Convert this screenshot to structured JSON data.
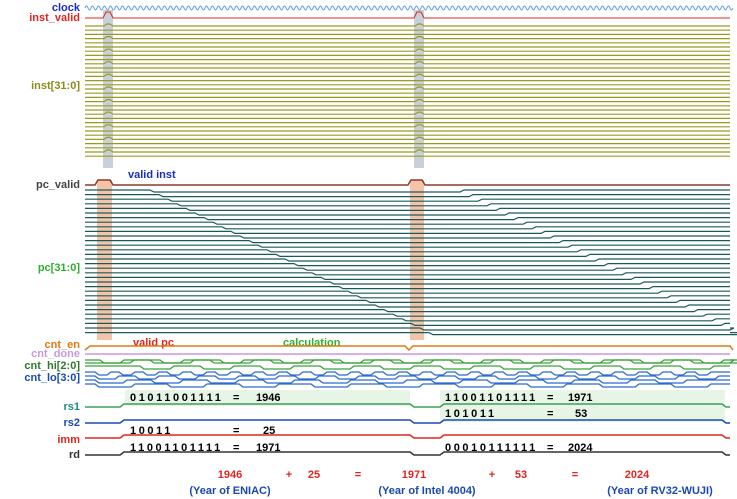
{
  "signals": [
    "clock",
    "inst_valid",
    "inst[31:0]",
    "pc_valid",
    "pc[31:0]",
    "cnt_en",
    "cnt_done",
    "cnt_hi[2:0]",
    "cnt_lo[3:0]",
    "rs1",
    "rs2",
    "imm",
    "rd"
  ],
  "annotations": {
    "valid_inst": "valid inst",
    "valid_pc": "valid pc",
    "calculation": "calculation"
  },
  "values": [
    {
      "bits": "01011001111",
      "eq": "=",
      "num": "1946"
    },
    {
      "bits": "11001101111",
      "eq": "=",
      "num": "1971"
    },
    {
      "bits": "101011",
      "eq": "=",
      "num": "53"
    },
    {
      "bits": "10011",
      "eq": "=",
      "num": "25"
    },
    {
      "bits": "11001101111",
      "eq": "=",
      "num": "1971"
    },
    {
      "bits": "00010111111",
      "eq": "=",
      "num": "2024"
    }
  ],
  "equation": {
    "terms": [
      "1946",
      "+",
      "25",
      "=",
      "1971",
      "+",
      "53",
      "=",
      "2024"
    ],
    "notes": [
      "(Year of ENIAC)",
      "(Year of Intel 4004)",
      "(Year of RV32-WUJI)"
    ]
  }
}
